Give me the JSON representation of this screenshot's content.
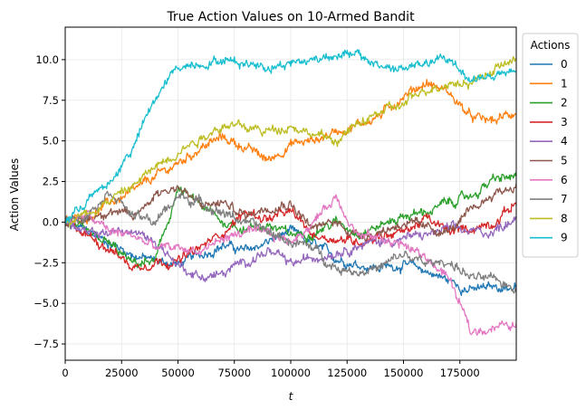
{
  "chart_data": {
    "type": "line",
    "title": "True Action Values on 10-Armed Bandit",
    "xlabel": "t",
    "ylabel": "Action Values",
    "xlim": [
      0,
      199999
    ],
    "ylim": [
      -8.5,
      12.0
    ],
    "xticks": [
      0,
      25000,
      50000,
      75000,
      100000,
      125000,
      150000,
      175000
    ],
    "xtick_labels": [
      "0",
      "25000",
      "50000",
      "75000",
      "100000",
      "125000",
      "150000",
      "175000"
    ],
    "yticks": [
      -7.5,
      -5.0,
      -2.5,
      0.0,
      2.5,
      5.0,
      7.5,
      10.0
    ],
    "ytick_labels": [
      "−7.5",
      "−5.0",
      "−2.5",
      "0.0",
      "2.5",
      "5.0",
      "7.5",
      "10.0"
    ],
    "grid": true,
    "legend": {
      "title": "Actions",
      "placement": "outside right, top"
    },
    "x": [
      0,
      10000,
      20000,
      30000,
      40000,
      50000,
      60000,
      70000,
      80000,
      90000,
      100000,
      110000,
      120000,
      130000,
      140000,
      150000,
      160000,
      170000,
      180000,
      190000,
      199999
    ],
    "series": [
      {
        "name": "0",
        "color": "#1f77b4",
        "values": [
          0.0,
          -0.6,
          -1.3,
          -2.0,
          -2.4,
          -2.6,
          -2.0,
          -1.4,
          -1.8,
          -1.2,
          -0.6,
          -1.4,
          -2.2,
          -2.6,
          -2.8,
          -2.6,
          -3.0,
          -3.6,
          -4.2,
          -4.0,
          -4.0
        ]
      },
      {
        "name": "1",
        "color": "#ff7f0e",
        "values": [
          0.0,
          0.4,
          1.2,
          1.8,
          2.8,
          3.6,
          4.6,
          5.2,
          4.6,
          3.8,
          4.8,
          5.0,
          5.6,
          6.0,
          6.6,
          7.8,
          8.6,
          8.0,
          6.4,
          6.2,
          6.8
        ]
      },
      {
        "name": "2",
        "color": "#2ca02c",
        "values": [
          0.0,
          -0.8,
          -1.4,
          -2.6,
          -2.4,
          2.0,
          1.0,
          0.0,
          -0.4,
          -0.2,
          -0.8,
          -0.6,
          0.0,
          -0.6,
          -0.2,
          0.4,
          0.6,
          1.2,
          1.6,
          2.6,
          2.8
        ]
      },
      {
        "name": "3",
        "color": "#d62728",
        "values": [
          0.0,
          -0.8,
          -1.6,
          -2.8,
          -2.4,
          -2.4,
          -1.6,
          -0.6,
          0.6,
          0.2,
          0.6,
          -0.8,
          -1.0,
          -1.2,
          -0.8,
          -0.6,
          0.2,
          -0.6,
          -0.4,
          0.0,
          1.2
        ]
      },
      {
        "name": "4",
        "color": "#9467bd",
        "values": [
          0.0,
          -0.8,
          -0.6,
          -0.6,
          -1.2,
          -2.6,
          -3.4,
          -3.2,
          -2.4,
          -1.8,
          -2.6,
          -2.2,
          -1.8,
          -1.4,
          -1.2,
          -1.0,
          -0.8,
          -0.4,
          -0.6,
          -0.6,
          0.4
        ]
      },
      {
        "name": "5",
        "color": "#8c564b",
        "values": [
          0.0,
          0.2,
          0.8,
          0.2,
          1.8,
          2.2,
          1.0,
          1.2,
          0.4,
          1.0,
          1.2,
          -0.4,
          0.0,
          -0.8,
          -0.6,
          0.0,
          -0.4,
          -0.6,
          0.6,
          1.8,
          2.2
        ]
      },
      {
        "name": "6",
        "color": "#e377c2",
        "values": [
          0.0,
          0.4,
          -0.6,
          -0.8,
          -1.6,
          -1.6,
          -1.8,
          -1.0,
          -0.6,
          -0.8,
          -1.2,
          0.0,
          1.6,
          -0.8,
          -1.0,
          -1.4,
          -2.2,
          -3.4,
          -6.8,
          -6.4,
          -6.4
        ]
      },
      {
        "name": "7",
        "color": "#7f7f7f",
        "values": [
          0.0,
          0.6,
          2.0,
          0.4,
          0.0,
          1.6,
          1.2,
          0.6,
          0.0,
          -0.6,
          -1.2,
          -1.6,
          -2.8,
          -3.0,
          -2.8,
          -2.0,
          -2.6,
          -2.4,
          -3.4,
          -3.6,
          -4.0
        ]
      },
      {
        "name": "8",
        "color": "#bcbd22",
        "values": [
          0.0,
          0.6,
          1.4,
          2.2,
          3.4,
          4.4,
          5.2,
          6.0,
          5.8,
          5.6,
          6.0,
          5.4,
          5.0,
          6.0,
          6.8,
          7.2,
          8.2,
          8.6,
          8.6,
          9.4,
          10.0
        ]
      },
      {
        "name": "9",
        "color": "#17becf",
        "values": [
          0.0,
          1.4,
          2.4,
          4.6,
          7.6,
          9.6,
          9.8,
          10.0,
          9.8,
          9.6,
          9.8,
          10.0,
          10.4,
          10.2,
          9.6,
          9.4,
          9.8,
          10.0,
          8.8,
          9.0,
          9.2
        ]
      }
    ]
  }
}
